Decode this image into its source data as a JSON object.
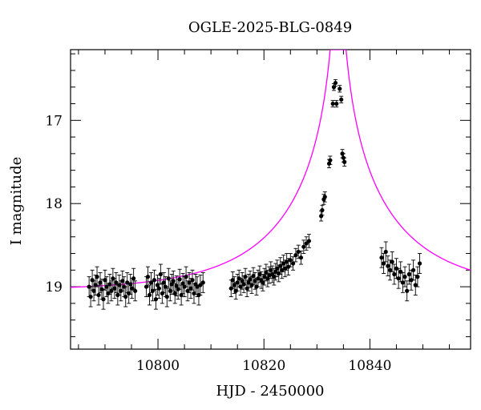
{
  "chart_data": {
    "type": "scatter",
    "title": "OGLE-2025-BLG-0849",
    "xlabel": "HJD - 2450000",
    "ylabel": "I magnitude",
    "xlim": [
      10783.5,
      10859
    ],
    "ylim": [
      19.75,
      16.15
    ],
    "y_inverted": true,
    "grid": false,
    "x_ticks": [
      10800,
      10820,
      10840
    ],
    "y_ticks": [
      17,
      18,
      19
    ],
    "colors": {
      "points": "#000000",
      "model": "#ff00ff"
    },
    "series": [
      {
        "kind": "points-with-errorbars",
        "x": [
          10787.0,
          10787.3,
          10787.6,
          10787.9,
          10788.2,
          10788.5,
          10788.8,
          10789.1,
          10789.4,
          10789.7,
          10790.0,
          10790.3,
          10790.6,
          10790.9,
          10791.2,
          10791.5,
          10791.8,
          10792.1,
          10792.4,
          10792.7,
          10793.0,
          10793.3,
          10793.6,
          10793.9,
          10794.2,
          10794.5,
          10794.8,
          10795.1,
          10795.4,
          10795.7,
          10797.8,
          10798.1,
          10798.4,
          10798.7,
          10799.0,
          10799.3,
          10799.6,
          10799.9,
          10800.2,
          10800.5,
          10800.8,
          10801.1,
          10801.4,
          10801.7,
          10802.0,
          10802.3,
          10802.6,
          10802.9,
          10803.2,
          10803.5,
          10803.8,
          10804.1,
          10804.4,
          10804.7,
          10805.0,
          10805.3,
          10805.6,
          10805.9,
          10806.2,
          10806.5,
          10806.8,
          10807.1,
          10807.4,
          10807.7,
          10808.0,
          10808.5,
          10813.8,
          10814.1,
          10814.4,
          10814.7,
          10815.0,
          10815.3,
          10815.6,
          10815.9,
          10816.2,
          10816.5,
          10816.8,
          10817.1,
          10817.4,
          10817.7,
          10818.0,
          10818.3,
          10818.6,
          10818.9,
          10819.2,
          10819.5,
          10819.8,
          10820.1,
          10820.4,
          10820.7,
          10821.0,
          10821.3,
          10821.6,
          10821.9,
          10822.2,
          10822.5,
          10822.8,
          10823.1,
          10823.4,
          10823.7,
          10824.0,
          10824.3,
          10824.6,
          10825.0,
          10825.5,
          10826.0,
          10826.5,
          10827.0,
          10827.5,
          10828.0,
          10828.5,
          10830.8,
          10831.0,
          10831.3,
          10831.5,
          10832.3,
          10832.5,
          10833.0,
          10833.2,
          10833.5,
          10833.7,
          10834.3,
          10834.6,
          10834.8,
          10835.0,
          10835.2,
          10842.2,
          10842.6,
          10843.0,
          10843.4,
          10843.8,
          10844.2,
          10844.6,
          10845.0,
          10845.4,
          10845.8,
          10846.2,
          10846.6,
          10847.0,
          10847.4,
          10847.8,
          10848.2,
          10848.6,
          10849.0,
          10849.4
        ],
        "y": [
          19.0,
          19.12,
          18.92,
          19.05,
          18.98,
          18.88,
          19.1,
          18.95,
          19.03,
          19.15,
          18.92,
          19.0,
          19.08,
          18.97,
          19.05,
          18.9,
          19.02,
          18.95,
          19.1,
          18.98,
          19.05,
          18.93,
          19.0,
          19.12,
          18.95,
          19.08,
          18.97,
          19.02,
          18.9,
          19.05,
          19.0,
          18.88,
          19.1,
          18.95,
          19.05,
          18.92,
          19.15,
          18.98,
          19.02,
          18.85,
          19.08,
          18.95,
          19.0,
          19.12,
          18.9,
          19.05,
          18.97,
          18.93,
          19.08,
          18.99,
          19.03,
          18.91,
          19.1,
          18.96,
          19.0,
          18.88,
          19.05,
          18.95,
          19.02,
          18.92,
          19.08,
          18.97,
          19.0,
          19.1,
          18.98,
          18.95,
          19.02,
          18.92,
          18.98,
          19.05,
          18.95,
          18.9,
          19.0,
          18.93,
          18.97,
          18.88,
          19.02,
          18.95,
          18.91,
          18.98,
          18.87,
          18.93,
          19.0,
          18.9,
          18.85,
          18.92,
          18.95,
          18.88,
          18.83,
          18.9,
          18.86,
          18.8,
          18.85,
          18.88,
          18.82,
          18.78,
          18.84,
          18.75,
          18.8,
          18.72,
          18.78,
          18.7,
          18.76,
          18.68,
          18.72,
          18.62,
          18.58,
          18.65,
          18.52,
          18.48,
          18.45,
          18.15,
          18.08,
          17.95,
          17.92,
          17.52,
          17.48,
          16.8,
          16.6,
          16.55,
          16.8,
          16.62,
          16.75,
          17.4,
          17.45,
          17.5,
          18.65,
          18.72,
          18.58,
          18.75,
          18.8,
          18.7,
          18.85,
          18.78,
          18.9,
          18.82,
          18.95,
          18.88,
          19.05,
          18.85,
          18.92,
          18.8,
          18.98,
          18.88,
          18.72
        ],
        "yerr": [
          0.12,
          0.12,
          0.12,
          0.12,
          0.12,
          0.12,
          0.12,
          0.12,
          0.12,
          0.12,
          0.12,
          0.12,
          0.12,
          0.12,
          0.12,
          0.12,
          0.12,
          0.12,
          0.12,
          0.12,
          0.12,
          0.12,
          0.12,
          0.12,
          0.12,
          0.12,
          0.12,
          0.12,
          0.12,
          0.12,
          0.12,
          0.12,
          0.12,
          0.12,
          0.12,
          0.12,
          0.12,
          0.12,
          0.12,
          0.12,
          0.12,
          0.12,
          0.12,
          0.12,
          0.12,
          0.12,
          0.12,
          0.12,
          0.12,
          0.12,
          0.12,
          0.12,
          0.12,
          0.12,
          0.12,
          0.12,
          0.12,
          0.12,
          0.12,
          0.12,
          0.12,
          0.12,
          0.12,
          0.12,
          0.12,
          0.12,
          0.1,
          0.1,
          0.1,
          0.1,
          0.1,
          0.1,
          0.1,
          0.1,
          0.1,
          0.1,
          0.1,
          0.1,
          0.1,
          0.1,
          0.1,
          0.1,
          0.1,
          0.1,
          0.1,
          0.1,
          0.1,
          0.1,
          0.1,
          0.1,
          0.1,
          0.1,
          0.1,
          0.1,
          0.1,
          0.1,
          0.1,
          0.1,
          0.1,
          0.1,
          0.1,
          0.1,
          0.1,
          0.08,
          0.08,
          0.08,
          0.08,
          0.08,
          0.08,
          0.08,
          0.08,
          0.06,
          0.06,
          0.06,
          0.06,
          0.05,
          0.05,
          0.04,
          0.04,
          0.04,
          0.04,
          0.04,
          0.04,
          0.05,
          0.05,
          0.05,
          0.12,
          0.12,
          0.12,
          0.12,
          0.12,
          0.12,
          0.12,
          0.12,
          0.12,
          0.12,
          0.12,
          0.12,
          0.12,
          0.12,
          0.12,
          0.12,
          0.12,
          0.12,
          0.12
        ]
      },
      {
        "kind": "model-curve",
        "t0": 10834.0,
        "tE": 22.0,
        "u0": 0.012,
        "baseline_mag": 19.05
      }
    ]
  }
}
